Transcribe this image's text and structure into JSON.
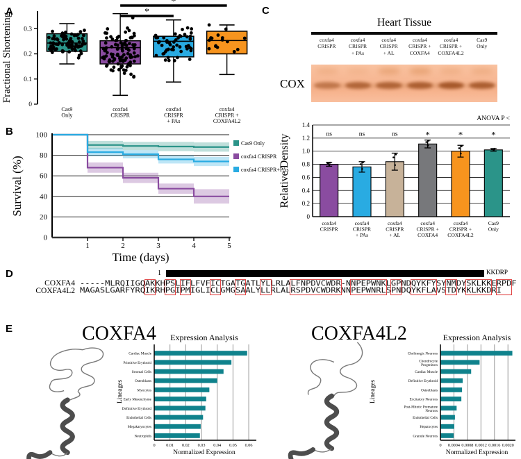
{
  "panel_labels": {
    "a": "A",
    "b": "B",
    "c": "C",
    "d": "D",
    "e": "E"
  },
  "colors": {
    "teal": "#2b9489",
    "purple": "#8a4ca0",
    "cyan": "#29abe2",
    "orange": "#f7941e",
    "tan": "#c7b299",
    "gray": "#77787b",
    "bar_teal": "#0f828c",
    "highlight_red": "#e04444"
  },
  "chart_data": [
    {
      "id": "fractional-shortening-boxplot",
      "type": "box",
      "ylabel": "Fractional Shortening",
      "ylim": [
        0,
        0.37
      ],
      "yticks": [
        0,
        0.1,
        0.2,
        0.3
      ],
      "groups": [
        {
          "label": [
            "Cas9",
            "Only"
          ],
          "color": "#2b9489",
          "n": 80,
          "mean": 0.245,
          "sd": 0.04,
          "min": 0.15,
          "max": 0.325,
          "q1": 0.21,
          "median": 0.243,
          "q3": 0.28,
          "wlo": 0.16,
          "whi": 0.32,
          "seed": 11
        },
        {
          "label": [
            "coxfa4",
            "CRISPR"
          ],
          "color": "#8a4ca0",
          "n": 105,
          "mean": 0.215,
          "sd": 0.075,
          "min": 0.012,
          "max": 0.36,
          "q1": 0.16,
          "median": 0.225,
          "q3": 0.252,
          "wlo": 0.035,
          "whi": 0.36,
          "seed": 22
        },
        {
          "label": [
            "coxfa4",
            "CRISPR",
            "+ PAs"
          ],
          "color": "#29abe2",
          "n": 52,
          "mean": 0.232,
          "sd": 0.062,
          "min": 0.05,
          "max": 0.335,
          "q1": 0.188,
          "median": 0.25,
          "q3": 0.27,
          "wlo": 0.088,
          "whi": 0.335,
          "seed": 33
        },
        {
          "label": [
            "coxfa4",
            "CRISPR +",
            "COXFA4L2"
          ],
          "color": "#f7941e",
          "n": 16,
          "mean": 0.245,
          "sd": 0.052,
          "min": 0.12,
          "max": 0.315,
          "q1": 0.2,
          "median": 0.253,
          "q3": 0.29,
          "wlo": 0.118,
          "whi": 0.315,
          "seed": 44
        }
      ],
      "significance": [
        {
          "from": 1,
          "to": 3,
          "label": "*"
        },
        {
          "from": 1,
          "to": 2,
          "label": "*"
        }
      ]
    },
    {
      "id": "survival-curve",
      "type": "line",
      "xlabel": "Time (days)",
      "ylabel": "Survival (%)",
      "ylim": [
        0,
        100
      ],
      "yticks": [
        0,
        20,
        40,
        60,
        80,
        100
      ],
      "xticks": [
        1,
        2,
        3,
        4,
        5
      ],
      "breaks": [
        1,
        2,
        3,
        4
      ],
      "series": [
        {
          "name": "Cas9 Only",
          "color": "#2b9489",
          "values": [
            100,
            90,
            89,
            88.5,
            88
          ],
          "band": [
            0,
            4,
            4,
            4.5,
            4.5
          ]
        },
        {
          "name": "coxfa4 CRISPR",
          "color": "#8a4ca0",
          "values": [
            100,
            68,
            58,
            47.5,
            40
          ],
          "band": [
            0,
            5,
            5,
            5,
            7
          ]
        },
        {
          "name": "coxfa4 CRISPR+PAs",
          "color": "#29abe2",
          "values": [
            100,
            83,
            81,
            76,
            74
          ],
          "band": [
            0,
            4,
            4,
            4,
            4.5
          ]
        }
      ],
      "legend_position": "right"
    },
    {
      "id": "relative-density-bars",
      "type": "bar",
      "ylabel": "Relative Density",
      "annotation": "ANOVA P <",
      "ylim": [
        0,
        1.4
      ],
      "ytick_labels": [
        "0",
        "0.2",
        "0.4",
        "0.6",
        "0.8",
        "1.0",
        "1.2",
        "1.4"
      ],
      "categories": [
        [
          "coxfa4",
          "CRISPR"
        ],
        [
          "coxfa4",
          "CRISPR",
          "+ PAs"
        ],
        [
          "coxfa4",
          "CRISPR",
          "+ AL"
        ],
        [
          "coxfa4",
          "CRISPR +",
          "COXFA4"
        ],
        [
          "coxfa4",
          "CRISPR +",
          "COXFA4L2"
        ],
        [
          "Cas9",
          "Only"
        ]
      ],
      "values": [
        0.8,
        0.76,
        0.84,
        1.11,
        1.0,
        1.02
      ],
      "errors": [
        0.03,
        0.08,
        0.13,
        0.06,
        0.09,
        0.02
      ],
      "sig": [
        "ns",
        "ns",
        "ns",
        "*",
        "*",
        "*"
      ],
      "bar_colors": [
        "#8a4ca0",
        "#29abe2",
        "#c7b299",
        "#77787b",
        "#f7941e",
        "#2b9489"
      ]
    },
    {
      "id": "expression-coxfa4",
      "type": "bar",
      "orientation": "horizontal",
      "title": "Expression Analysis",
      "xlabel": "Normalized Expression",
      "ylabel": "Lineages",
      "xmax": 0.0635,
      "xticks": [
        {
          "v": 0,
          "label": "0"
        },
        {
          "v": 0.01,
          "label": "0.01"
        },
        {
          "v": 0.02,
          "label": "0.02"
        },
        {
          "v": 0.03,
          "label": "0.03"
        },
        {
          "v": 0.04,
          "label": "0.04"
        },
        {
          "v": 0.05,
          "label": "0.05"
        },
        {
          "v": 0.06,
          "label": "0.06"
        }
      ],
      "rows": [
        {
          "label": [
            "Cardiac Muscle"
          ],
          "value": 0.059
        },
        {
          "label": [
            "Primitive Erythroid"
          ],
          "value": 0.049
        },
        {
          "label": [
            "Stromal Cells"
          ],
          "value": 0.044
        },
        {
          "label": [
            "Osteoblasts"
          ],
          "value": 0.04
        },
        {
          "label": [
            "Myocytes"
          ],
          "value": 0.035
        },
        {
          "label": [
            "Early Mesenchyme"
          ],
          "value": 0.033
        },
        {
          "label": [
            "Definitive Erythroid"
          ],
          "value": 0.0325
        },
        {
          "label": [
            "Endothelial Cells"
          ],
          "value": 0.031
        },
        {
          "label": [
            "Megakaryocytes"
          ],
          "value": 0.0295
        },
        {
          "label": [
            "Neutrophils"
          ],
          "value": 0.029
        }
      ],
      "bar_color": "#0f828c"
    },
    {
      "id": "expression-coxfa4l2",
      "type": "bar",
      "orientation": "horizontal",
      "title": "Expression Analysis",
      "xlabel": "Normalized Expression",
      "ylabel": "Lineages",
      "xmax": 0.00216,
      "xticks": [
        {
          "v": 0,
          "label": "0"
        },
        {
          "v": 0.0004,
          "label": "0.0004"
        },
        {
          "v": 0.0008,
          "label": "0.0008"
        },
        {
          "v": 0.0012,
          "label": "0.0012"
        },
        {
          "v": 0.0016,
          "label": "0.0016"
        },
        {
          "v": 0.002,
          "label": "0.0020"
        }
      ],
      "rows": [
        {
          "label": [
            "Cholinergic Neurons"
          ],
          "value": 0.00213
        },
        {
          "label": [
            "Chondrocyte",
            "Progenitors"
          ],
          "value": 0.00116
        },
        {
          "label": [
            "Cardiac Muscle"
          ],
          "value": 0.00091
        },
        {
          "label": [
            "Definitive Erythroid"
          ],
          "value": 0.00066
        },
        {
          "label": [
            "Osteoblasts"
          ],
          "value": 0.00064
        },
        {
          "label": [
            "Excitatory Neurons"
          ],
          "value": 0.00062
        },
        {
          "label": [
            "Post-Mitotic Premature",
            "Neurons"
          ],
          "value": 0.00048
        },
        {
          "label": [
            "Endothelial Cells"
          ],
          "value": 0.00043
        },
        {
          "label": [
            "Hepatocytes"
          ],
          "value": 0.00041
        },
        {
          "label": [
            "Granule Neurons"
          ],
          "value": 0.00039
        }
      ],
      "bar_color": "#0f828c"
    }
  ],
  "blot": {
    "title": "Heart Tissue",
    "row_label": "COX",
    "lanes": [
      [
        "coxfa4",
        "CRISPR"
      ],
      [
        "coxfa4",
        "CRISPR",
        "+ PAs"
      ],
      [
        "coxfa4",
        "CRISPR",
        "+ AL"
      ],
      [
        "coxfa4",
        "CRISPR +",
        "COXFA4"
      ],
      [
        "coxfa4",
        "CRISPR +",
        "COXFA4L2"
      ],
      [
        "Cas9",
        "Only"
      ]
    ],
    "band_strength": [
      0.55,
      0.72,
      0.74,
      0.8,
      0.88,
      0.82
    ],
    "smudge_strength": [
      0.28,
      0.18,
      0.5,
      0.55,
      0.28,
      0.32
    ]
  },
  "alignment": {
    "ruler_start": "1",
    "ruler_end": "KKDRP",
    "rows": [
      {
        "name": "COXFA4",
        "seq": "-----MLRQIIGQAKKHPSLIFLFVFICTGATGATLYLLRLALFNPDVCWDR-NNPEPWNKLGPNDQYKFYSYNMDYSKLKKERPDF"
      },
      {
        "name": "COXFA4L2",
        "seq": "MAGASLGARFYRQIKRHPGIPMIGLICLGMGSAALYLLRLALRSPDVCWDRKNNPEPWNRLSPNDQYKFLAVSTDYKKLKKDRI"
      }
    ],
    "highlight_ranges": [
      [
        13,
        15
      ],
      [
        17,
        19
      ],
      [
        20,
        22
      ],
      [
        26,
        28
      ],
      [
        31,
        33
      ],
      [
        36,
        38
      ],
      [
        42,
        52
      ],
      [
        54,
        61
      ],
      [
        62,
        64
      ],
      [
        66,
        71
      ],
      [
        73,
        75
      ],
      [
        77,
        82
      ],
      [
        83,
        86
      ]
    ]
  },
  "panelE": {
    "title_left": "COXFA4",
    "title_right": "COXFA4L2"
  }
}
